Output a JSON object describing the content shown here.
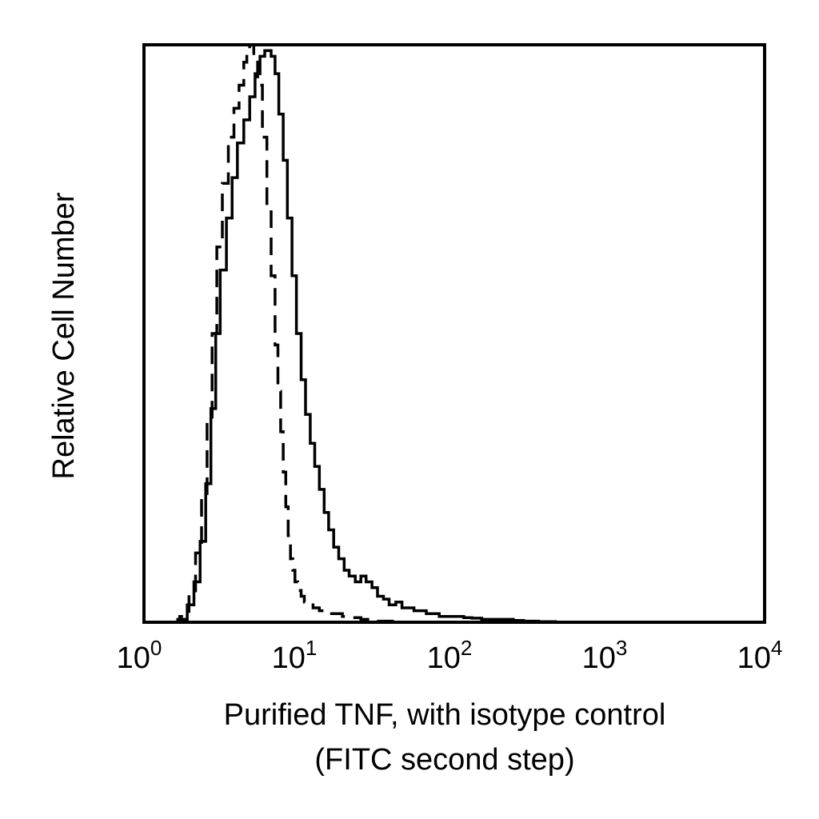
{
  "chart_data": {
    "type": "area",
    "title": "",
    "xlabel": "Purified TNF, with isotype control",
    "xlabel_line2": "(FITC second step)",
    "ylabel": "Relative Cell Number",
    "x_scale": "log",
    "xlim": [
      1,
      10000
    ],
    "ylim": [
      0,
      100
    ],
    "y_ticks_visible": false,
    "grid": false,
    "legend": "none",
    "x_ticks": [
      {
        "value": 1,
        "base": "10",
        "exp": "0"
      },
      {
        "value": 10,
        "base": "10",
        "exp": "1"
      },
      {
        "value": 100,
        "base": "10",
        "exp": "2"
      },
      {
        "value": 1000,
        "base": "10",
        "exp": "3"
      },
      {
        "value": 10000,
        "base": "10",
        "exp": "4"
      }
    ],
    "series": [
      {
        "style": "solid",
        "color": "#000000",
        "x": [
          1.0,
          1.4,
          1.65,
          1.9,
          2.1,
          2.3,
          2.5,
          2.7,
          2.9,
          3.1,
          3.4,
          3.7,
          4.0,
          4.4,
          4.8,
          5.2,
          5.6,
          6.0,
          6.3,
          6.6,
          7.0,
          7.4,
          7.9,
          8.4,
          9.0,
          9.6,
          10.3,
          11.0,
          11.8,
          12.6,
          13.5,
          14.5,
          15.5,
          16.7,
          18.0,
          19.5,
          21.0,
          23.0,
          25.0,
          27.0,
          29.5,
          32.0,
          35.0,
          38.0,
          42.0,
          46.0,
          50.0,
          55.0,
          60.0,
          66.0,
          72.0,
          80.0,
          90.0,
          100.0,
          115.0,
          130.0,
          150.0,
          175.0,
          200.0,
          240.0,
          280.0,
          350.0,
          450.0,
          600.0,
          1000.0,
          10000.0
        ],
        "values": [
          0.0,
          0.0,
          0.5,
          3,
          7,
          14,
          24,
          37,
          50,
          61,
          70,
          77,
          83,
          87,
          91,
          95,
          98,
          99,
          99,
          98,
          95,
          88,
          80,
          70,
          60,
          50,
          42,
          36,
          31,
          27,
          23,
          19,
          16,
          13,
          11,
          9,
          8,
          7,
          8,
          7,
          6,
          4.5,
          4,
          3,
          3.5,
          2.5,
          2.5,
          2,
          2,
          1.5,
          1.5,
          1,
          1,
          1,
          0.8,
          0.7,
          0.5,
          0.5,
          0.5,
          0.3,
          0.2,
          0.1,
          0.0,
          0.0,
          0.0,
          0.0
        ]
      },
      {
        "style": "dashed",
        "color": "#000000",
        "x": [
          1.0,
          1.4,
          1.7,
          1.95,
          2.15,
          2.35,
          2.55,
          2.75,
          2.95,
          3.2,
          3.5,
          3.8,
          4.1,
          4.4,
          4.6,
          4.8,
          5.1,
          5.4,
          5.8,
          6.2,
          6.6,
          7.0,
          7.3,
          7.6,
          7.9,
          8.2,
          8.5,
          8.8,
          9.1,
          9.4,
          9.8,
          10.3,
          10.8,
          11.5,
          12.3,
          13.5,
          15.0,
          17.0,
          19.0,
          22.0,
          25.0,
          30.0,
          40.0,
          10000.0
        ],
        "values": [
          0.0,
          0.0,
          1,
          5,
          12,
          22,
          35,
          50,
          65,
          76,
          84,
          89,
          93,
          97,
          99,
          100,
          98,
          93,
          84,
          72,
          60,
          48,
          40,
          33,
          26,
          20,
          15,
          11,
          9,
          7,
          5.5,
          4.5,
          3.5,
          3,
          2.5,
          2,
          1.5,
          1.5,
          1,
          0.8,
          0.5,
          0.2,
          0.0,
          0.0
        ]
      }
    ]
  }
}
